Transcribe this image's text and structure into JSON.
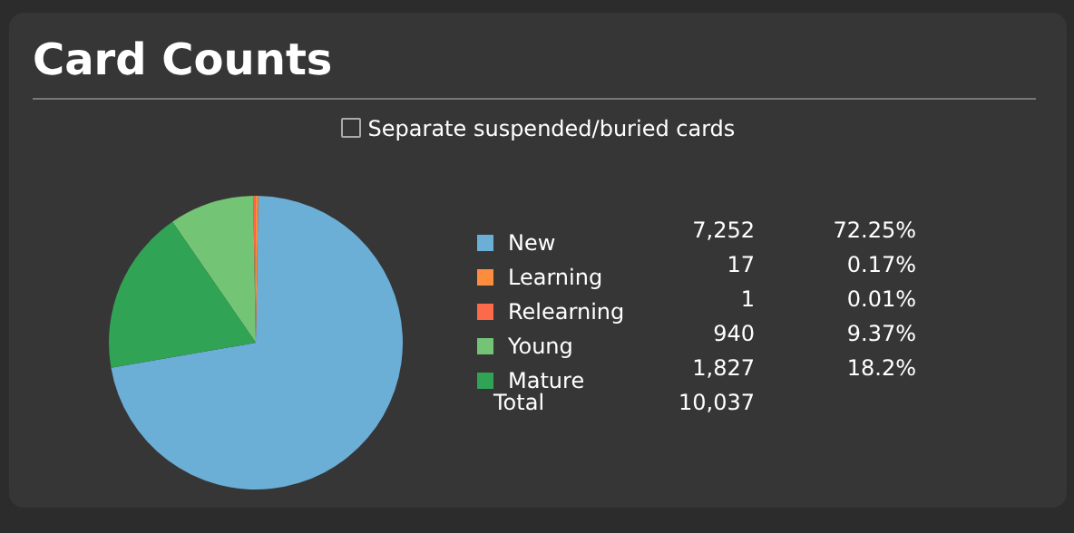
{
  "chart_data": {
    "type": "pie",
    "title": "Card Counts",
    "categories": [
      "New",
      "Learning",
      "Relearning",
      "Young",
      "Mature"
    ],
    "values": [
      7252,
      17,
      1,
      940,
      1827
    ],
    "colors": [
      "#6baed6",
      "#fd8d3c",
      "#fb6a4a",
      "#74c476",
      "#31a354"
    ],
    "value_labels": [
      "7,252",
      "17",
      "1",
      "940",
      "1,827"
    ],
    "legend": "right",
    "annotations": [
      "Separate suspended/buried cards",
      "Total",
      "10,037",
      "72.25%",
      "0.17%",
      "0.01%",
      "9.37%",
      "18.2%"
    ]
  }
}
